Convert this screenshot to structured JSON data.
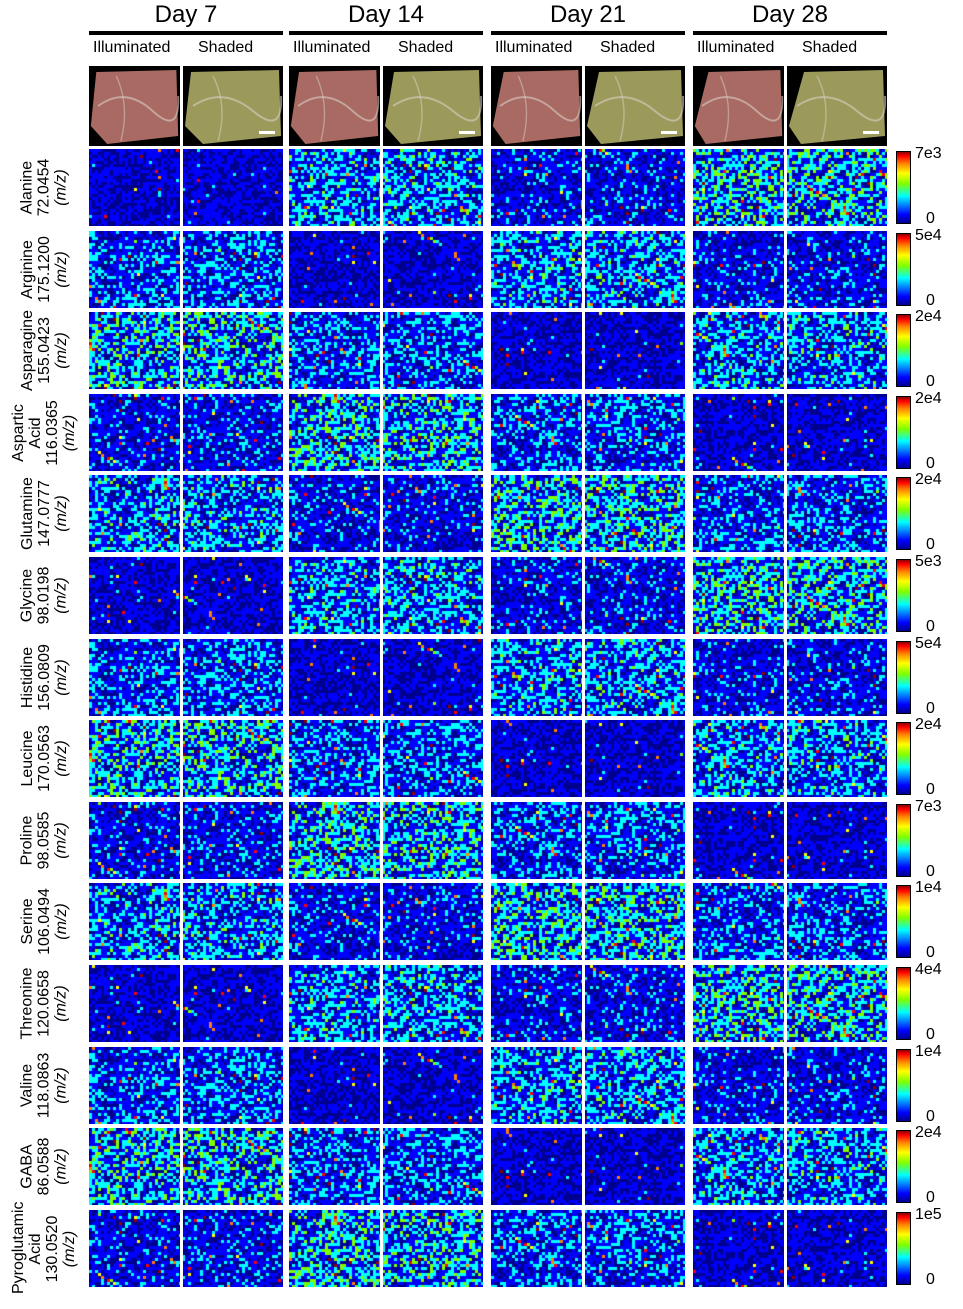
{
  "days": [
    "Day 7",
    "Day 14",
    "Day 21",
    "Day 28"
  ],
  "conditions": [
    "Illuminated",
    "Shaded"
  ],
  "rows": [
    {
      "name": "Alanine",
      "mz": "72.0454",
      "unit": "(m/z)",
      "max": "7e3",
      "min": "0"
    },
    {
      "name": "Arginine",
      "mz": "175.1200",
      "unit": "(m/z)",
      "max": "5e4",
      "min": "0"
    },
    {
      "name": "Asparagine",
      "mz": "155.0423",
      "unit": "(m/z)",
      "max": "2e4",
      "min": "0"
    },
    {
      "name": "Aspartic Acid",
      "mz": "116.0365",
      "unit": "(m/z)",
      "max": "2e4",
      "min": "0"
    },
    {
      "name": "Glutamine",
      "mz": "147.0777",
      "unit": "(m/z)",
      "max": "2e4",
      "min": "0"
    },
    {
      "name": "Glycine",
      "mz": "98.0198",
      "unit": "(m/z)",
      "max": "5e3",
      "min": "0"
    },
    {
      "name": "Histidine",
      "mz": "156.0809",
      "unit": "(m/z)",
      "max": "5e4",
      "min": "0"
    },
    {
      "name": "Leucine",
      "mz": "170.0563",
      "unit": "(m/z)",
      "max": "2e4",
      "min": "0"
    },
    {
      "name": "Proline",
      "mz": "98.0585",
      "unit": "(m/z)",
      "max": "7e3",
      "min": "0"
    },
    {
      "name": "Serine",
      "mz": "106.0494",
      "unit": "(m/z)",
      "max": "1e4",
      "min": "0"
    },
    {
      "name": "Threonine",
      "mz": "120.0658",
      "unit": "(m/z)",
      "max": "4e4",
      "min": "0"
    },
    {
      "name": "Valine",
      "mz": "118.0863",
      "unit": "(m/z)",
      "max": "1e4",
      "min": "0"
    },
    {
      "name": "GABA",
      "mz": "86.0588",
      "unit": "(m/z)",
      "max": "2e4",
      "min": "0"
    },
    {
      "name": "Pyroglutamic Acid",
      "mz": "130.0520",
      "unit": "(m/z)",
      "max": "1e5",
      "min": "0"
    }
  ],
  "colors": {
    "colormap": [
      "#00008f",
      "#0000ff",
      "#00ffff",
      "#7fff00",
      "#ffff00",
      "#ff7f00",
      "#ff0000",
      "#8f0000"
    ],
    "heat_background": "#00007a",
    "photo_tissue": "#a86a62",
    "photo_shaded_tissue": "#9c9a5a"
  }
}
